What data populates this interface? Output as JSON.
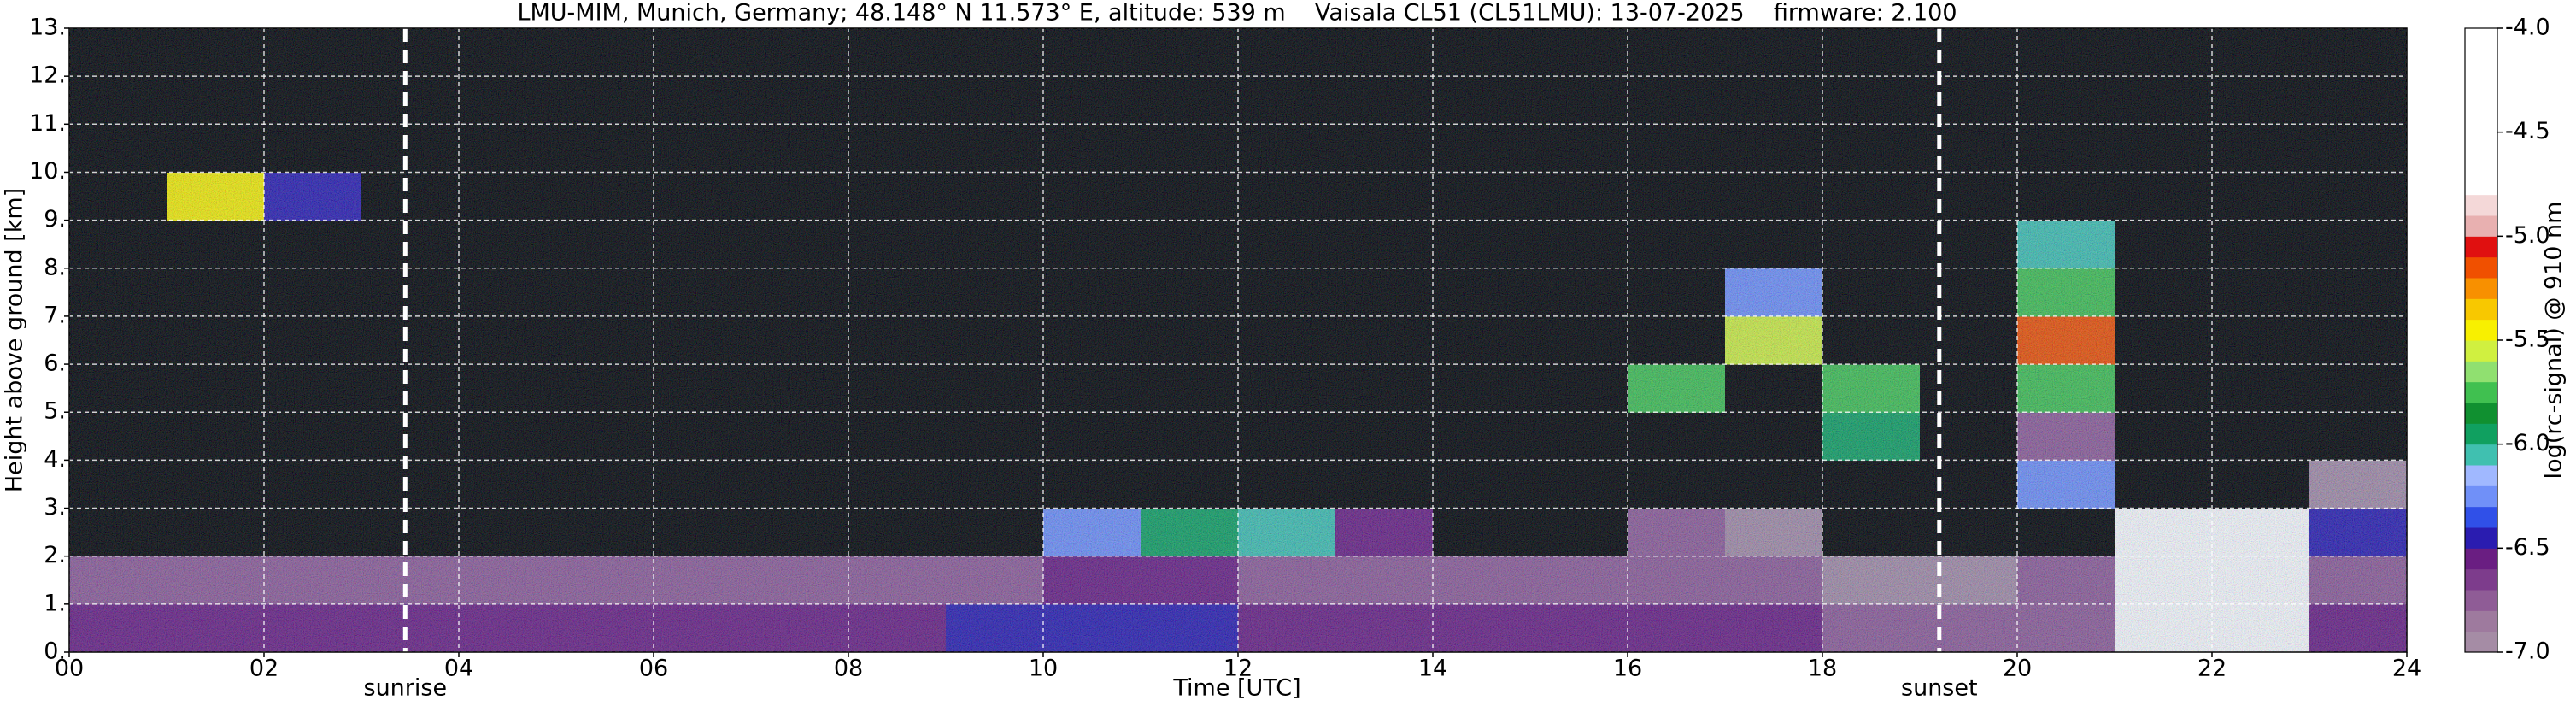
{
  "chart_data": {
    "type": "heatmap",
    "title": "LMU-MIM, Munich, Germany; 48.148° N 11.573° E, altitude: 539 m    Vaisala CL51 (CL51LMU): 13-07-2025    firmware: 2.100",
    "x_label": "Time [UTC]",
    "y_label": "Height above ground [km]",
    "colorbar_label": "log(rc-signal) @ 910 nm",
    "xlim": [
      0,
      24
    ],
    "ylim": [
      0,
      13
    ],
    "clim": [
      -7,
      -4
    ],
    "xticks": [
      {
        "value": 0,
        "label": "00"
      },
      {
        "value": 2,
        "label": "02"
      },
      {
        "value": 4,
        "label": "04"
      },
      {
        "value": 6,
        "label": "06"
      },
      {
        "value": 8,
        "label": "08"
      },
      10,
      12,
      14,
      16,
      18,
      20,
      22,
      24
    ],
    "yticks": [
      {
        "value": 0,
        "label": "0."
      },
      {
        "value": 1,
        "label": "1."
      },
      {
        "value": 2,
        "label": "2."
      },
      {
        "value": 3,
        "label": "3."
      },
      {
        "value": 4,
        "label": "4."
      },
      {
        "value": 5,
        "label": "5."
      },
      {
        "value": 6,
        "label": "6."
      },
      {
        "value": 7,
        "label": "7."
      },
      {
        "value": 8,
        "label": "8."
      },
      {
        "value": 9,
        "label": "9."
      },
      {
        "value": 10,
        "label": "10."
      },
      {
        "value": 11,
        "label": "11."
      },
      {
        "value": 12,
        "label": "12."
      },
      {
        "value": 13,
        "label": "13."
      }
    ],
    "cticks": [
      {
        "value": -4,
        "label": "-4.0"
      },
      -4.5,
      {
        "value": -5,
        "label": "-5.0"
      },
      -5.5,
      {
        "value": -6,
        "label": "-6.0"
      },
      -6.5,
      {
        "value": -7,
        "label": "-7.0"
      }
    ],
    "grid": true,
    "colors": [
      "#a58ca5",
      "#9e7a9e",
      "#8f5c96",
      "#7d3c8c",
      "#6a1e82",
      "#2a1cb0",
      "#3050e8",
      "#7090f8",
      "#a0b8ff",
      "#40c0b0",
      "#10a060",
      "#109030",
      "#40c050",
      "#90e070",
      "#d0f040",
      "#f8f000",
      "#f8c800",
      "#f89000",
      "#f05000",
      "#e01010",
      "#e8b0b0",
      "#f4d8d8",
      "#ffffff",
      "#ffffff",
      "#ffffff",
      "#ffffff",
      "#ffffff",
      "#ffffff",
      "#ffffff",
      "#ffffff"
    ],
    "under_color": "#000000",
    "annotations": [
      {
        "label": "sunrise",
        "x": 3.45
      },
      {
        "label": "sunset",
        "x": 19.2
      }
    ],
    "z": [
      [
        -6.6,
        -6.6,
        -6.6,
        -6.6,
        -6.6,
        -6.6,
        -6.6,
        -6.6,
        -6.6,
        -6.5,
        -6.5,
        -6.5,
        -6.6,
        -6.6,
        -6.6,
        -6.6,
        -6.6,
        -6.6,
        -6.7,
        -6.8,
        -6.8,
        -4.2,
        -4.2,
        -6.6
      ],
      [
        -6.8,
        -6.8,
        -6.7,
        -6.7,
        -6.8,
        -6.8,
        -6.8,
        -6.8,
        -6.8,
        -6.7,
        -6.6,
        -6.6,
        -6.7,
        -6.7,
        -6.8,
        -6.8,
        -6.8,
        -6.8,
        -6.9,
        -6.9,
        -6.7,
        -4.3,
        -4.3,
        -6.7
      ],
      [
        -7.3,
        -7.3,
        -7.3,
        -7.3,
        -7.3,
        -7.3,
        -7.3,
        -7.3,
        -7.3,
        -7.2,
        -6.2,
        -6.0,
        -6.1,
        -6.6,
        -7.2,
        -7.2,
        -6.8,
        -6.9,
        -7.2,
        -7.3,
        -7.2,
        -4.6,
        -4.7,
        -6.5
      ],
      [
        -7.3,
        -7.3,
        -7.3,
        -7.3,
        -7.3,
        -7.3,
        -7.3,
        -7.3,
        -7.3,
        -7.3,
        -7.3,
        -7.3,
        -7.3,
        -7.3,
        -7.3,
        -7.3,
        -7.3,
        -7.3,
        -7.3,
        -7.3,
        -6.2,
        -8,
        -8,
        -6.9
      ],
      [
        -7.3,
        -7.3,
        -7.3,
        -7.3,
        -7.3,
        -7.3,
        -7.3,
        -7.3,
        -7.3,
        -7.3,
        -7.3,
        -7.3,
        -7.3,
        -7.3,
        -7.3,
        -7.3,
        -7.3,
        -7.3,
        -5.9,
        -7.3,
        -6.8,
        -8,
        -8,
        -7.3
      ],
      [
        -7.3,
        -7.3,
        -7.3,
        -7.3,
        -7.3,
        -7.3,
        -7.3,
        -7.3,
        -7.3,
        -7.3,
        -7.3,
        -7.3,
        -7.3,
        -7.3,
        -7.3,
        -7.3,
        -5.7,
        -7.3,
        -5.8,
        -7.3,
        -5.7,
        -8,
        -8,
        -7.3
      ],
      [
        -7.3,
        -7.3,
        -7.3,
        -7.3,
        -7.3,
        -7.3,
        -7.3,
        -7.3,
        -7.3,
        -7.3,
        -7.3,
        -7.3,
        -7.3,
        -7.3,
        -7.3,
        -7.3,
        -7.3,
        -5.6,
        -7.3,
        -7.3,
        -5.2,
        -8,
        -8,
        -7.3
      ],
      [
        -7.3,
        -7.3,
        -7.3,
        -7.3,
        -7.3,
        -7.3,
        -7.3,
        -7.3,
        -7.3,
        -7.3,
        -7.3,
        -7.3,
        -7.3,
        -7.3,
        -7.3,
        -7.3,
        -7.3,
        -6.3,
        -7.3,
        -7.3,
        -5.8,
        -8,
        -8,
        -7.3
      ],
      [
        -7.3,
        -7.3,
        -7.3,
        -7.3,
        -7.3,
        -7.3,
        -7.3,
        -7.3,
        -7.3,
        -7.3,
        -7.3,
        -7.3,
        -7.3,
        -7.3,
        -7.3,
        -7.3,
        -7.3,
        -7.3,
        -7.3,
        -7.3,
        -6.1,
        -8,
        -8,
        -7.3
      ],
      [
        -7.3,
        -5.5,
        -6.4,
        -7.3,
        -7.3,
        -7.3,
        -7.3,
        -7.3,
        -7.3,
        -7.3,
        -7.3,
        -7.3,
        -7.3,
        -7.3,
        -7.3,
        -7.3,
        -7.3,
        -7.3,
        -7.3,
        -7.3,
        -7.3,
        -8,
        -8,
        -7.3
      ],
      [
        -7.3,
        -7.3,
        -7.3,
        -7.3,
        -7.3,
        -7.3,
        -7.3,
        -7.3,
        -7.3,
        -7.3,
        -7.3,
        -7.3,
        -7.3,
        -7.3,
        -7.3,
        -7.3,
        -7.3,
        -7.3,
        -7.3,
        -7.3,
        -7.3,
        -8,
        -8,
        -7.3
      ],
      [
        -7.3,
        -7.3,
        -7.3,
        -7.3,
        -7.3,
        -7.3,
        -7.3,
        -7.3,
        -7.3,
        -7.3,
        -7.3,
        -7.3,
        -7.3,
        -7.3,
        -7.3,
        -7.3,
        -7.3,
        -7.3,
        -7.3,
        -7.3,
        -7.3,
        -8,
        -8,
        -7.3
      ],
      [
        -7.3,
        -7.3,
        -7.3,
        -7.3,
        -7.3,
        -7.3,
        -7.3,
        -7.3,
        -7.3,
        -7.3,
        -7.3,
        -7.3,
        -7.3,
        -7.3,
        -7.3,
        -7.3,
        -7.3,
        -7.3,
        -7.3,
        -7.3,
        -7.3,
        -8,
        -8,
        -7.3
      ]
    ]
  }
}
